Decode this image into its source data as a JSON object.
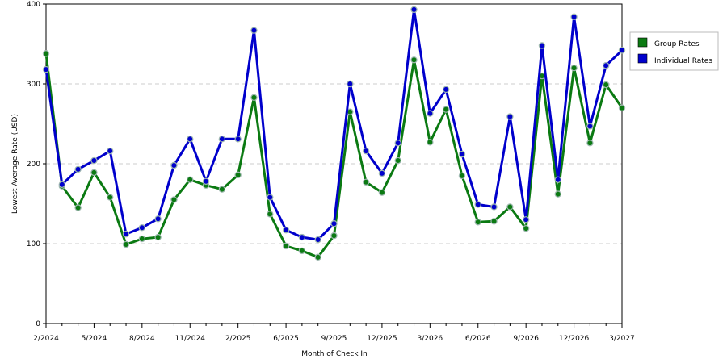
{
  "chart_data": {
    "type": "line",
    "title": "",
    "xlabel": "Month of Check In",
    "ylabel": "Lowest Average Rate (USD)",
    "ylim": [
      0,
      400
    ],
    "yticks": [
      0,
      100,
      200,
      300,
      400
    ],
    "x_tick_labels": [
      "2/2024",
      "5/2024",
      "8/2024",
      "11/2024",
      "2/2025",
      "6/2025",
      "9/2025",
      "12/2025",
      "3/2026",
      "6/2026",
      "9/2026",
      "12/2026",
      "3/2027"
    ],
    "x_tick_indices": [
      0,
      3,
      6,
      9,
      12,
      15,
      18,
      21,
      24,
      27,
      30,
      33,
      36
    ],
    "grid": true,
    "legend_position": "right",
    "series": [
      {
        "name": "Group Rates",
        "color": "#0b7a12",
        "values": [
          338,
          172,
          145,
          189,
          158,
          99,
          106,
          108,
          155,
          180,
          173,
          168,
          186,
          283,
          137,
          97,
          91,
          83,
          110,
          265,
          177,
          164,
          204,
          330,
          227,
          268,
          185,
          127,
          128,
          146,
          119,
          310,
          162,
          320,
          226,
          299,
          270
        ]
      },
      {
        "name": "Individual Rates",
        "color": "#0000cc",
        "values": [
          318,
          174,
          193,
          204,
          216,
          112,
          120,
          131,
          198,
          231,
          178,
          231,
          231,
          367,
          158,
          117,
          108,
          105,
          125,
          300,
          216,
          188,
          226,
          393,
          263,
          293,
          212,
          149,
          146,
          259,
          130,
          348,
          180,
          384,
          247,
          323,
          342
        ]
      }
    ]
  }
}
